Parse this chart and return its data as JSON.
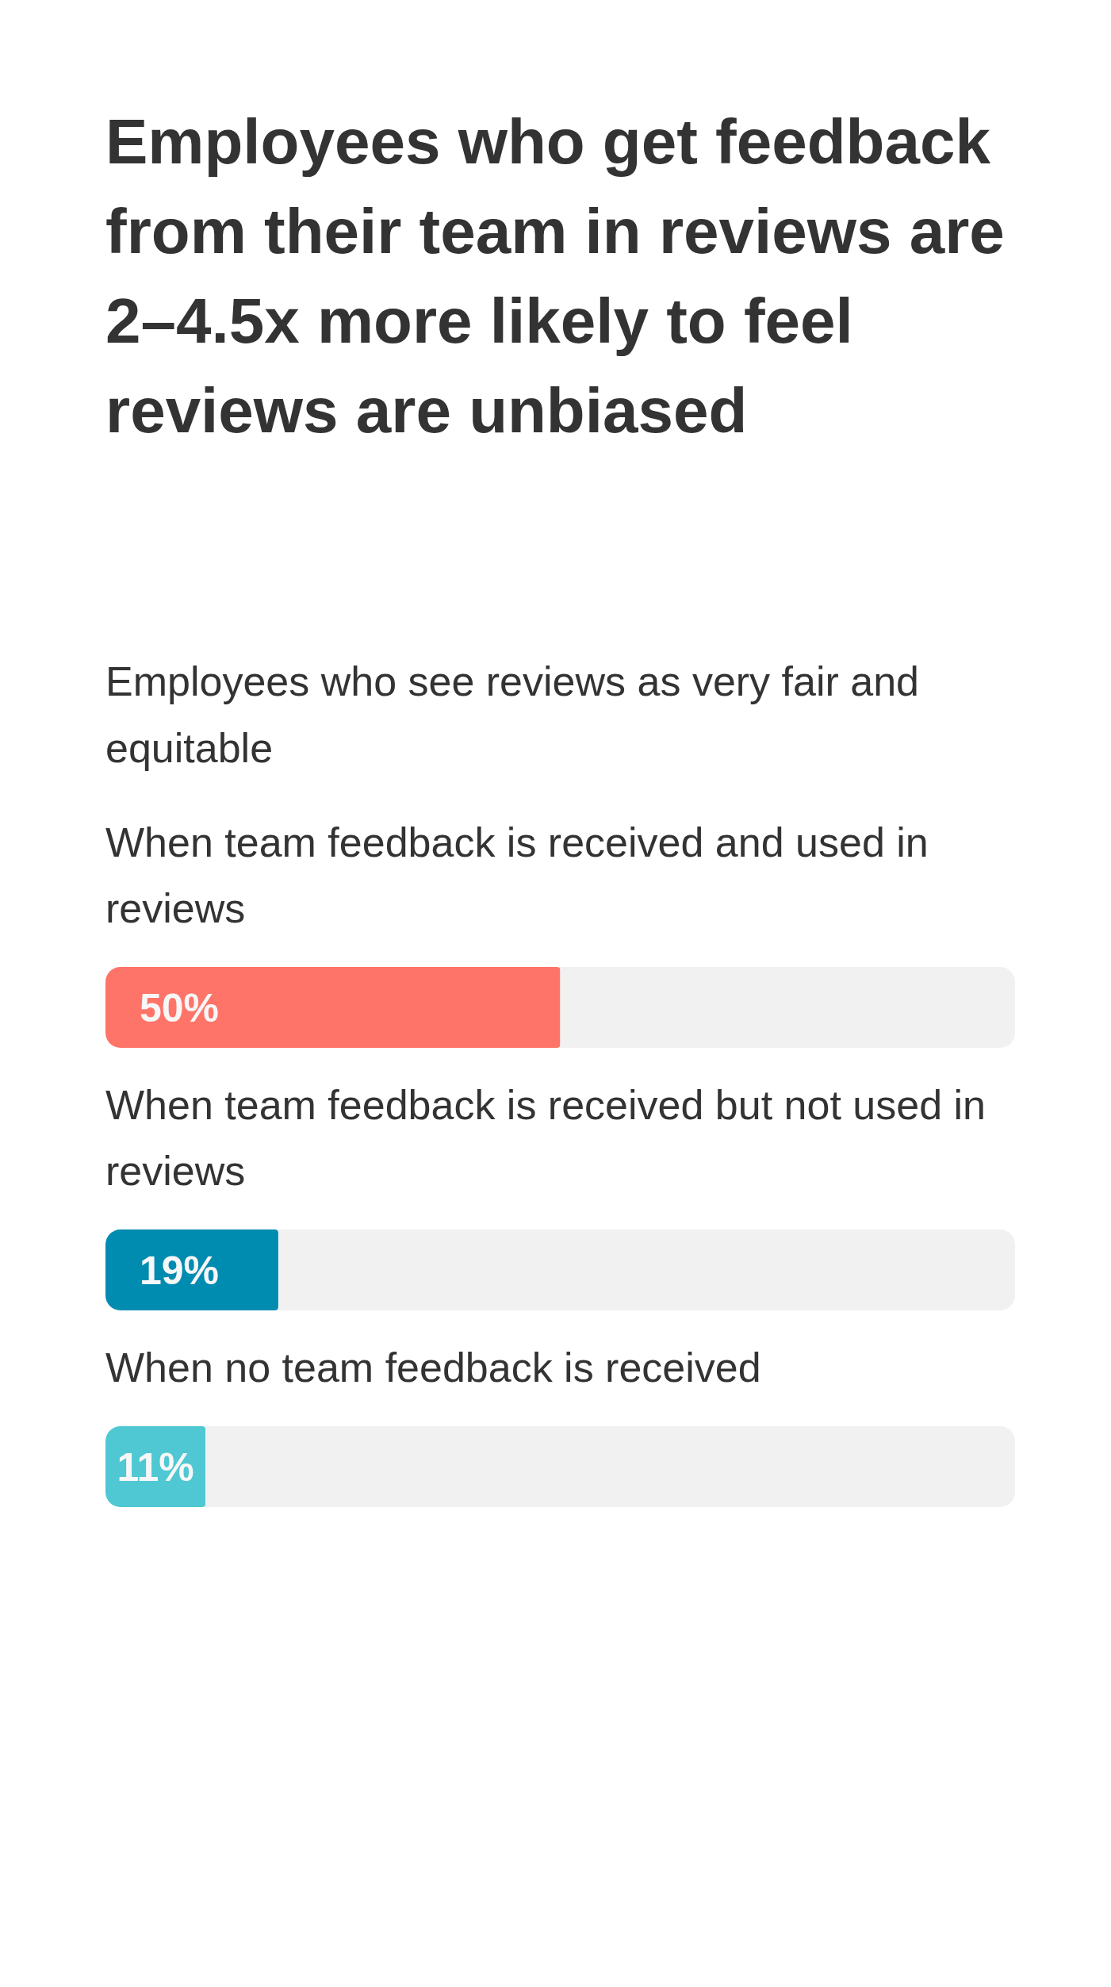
{
  "chart_data": {
    "type": "bar",
    "orientation": "horizontal",
    "stacked": true,
    "title": "Employees who get feedback from their team in reviews are 2–4.5x more likely to feel reviews are unbiased",
    "subtitle": "Employees who see reviews as very fair and equitable",
    "categories": [
      "When team feedback is received and used in reviews",
      "When team feedback is received but not used in reviews",
      "When no team feedback is received"
    ],
    "series": [
      {
        "colors": [
          "#ff7469",
          "#008bb0",
          "#4fc8d3"
        ],
        "values": [
          50,
          19,
          11
        ],
        "value_labels": [
          "50%",
          "19%",
          "11%"
        ]
      },
      {
        "color": "#f1f1f1",
        "values": [
          50,
          81,
          89
        ]
      }
    ],
    "xlim": [
      0,
      100
    ],
    "tick_labels": false
  }
}
